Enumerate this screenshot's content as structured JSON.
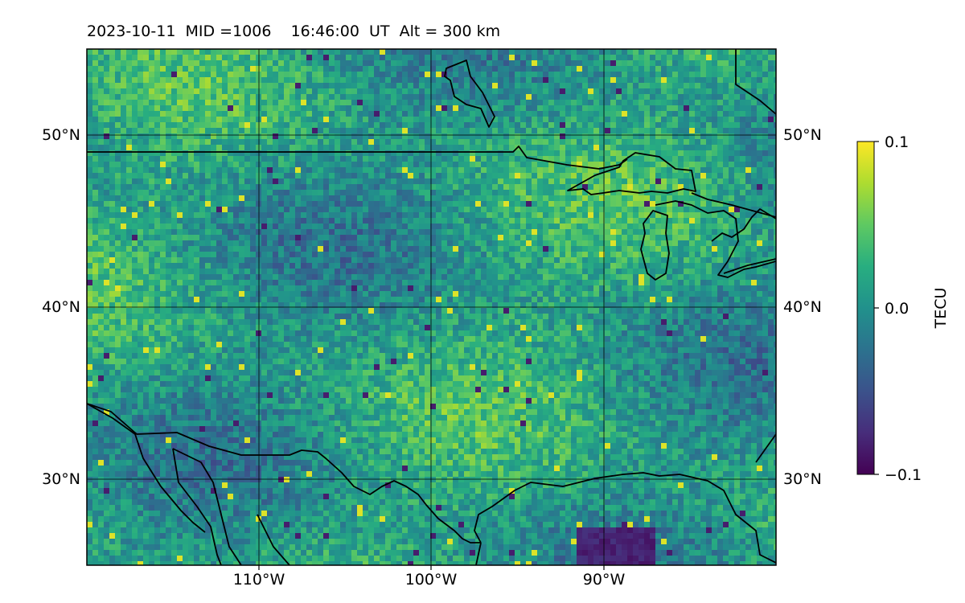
{
  "title": "2023-10-11  MID =1006    16:46:00  UT  Alt = 300 km",
  "map": {
    "lon_range": [
      -120,
      -80
    ],
    "lat_range": [
      25,
      55
    ],
    "grid": true,
    "lon_ticks": [
      {
        "value": -110,
        "label": "110°W"
      },
      {
        "value": -100,
        "label": "100°W"
      },
      {
        "value": -90,
        "label": "90°W"
      }
    ],
    "lat_ticks": [
      {
        "value": 30,
        "label": "30°N"
      },
      {
        "value": 40,
        "label": "40°N"
      },
      {
        "value": 50,
        "label": "50°N"
      }
    ],
    "colormap": "viridis",
    "coastline_color": "#000000",
    "us_canada_border_lat": 49
  },
  "colorbar": {
    "label": "TECU",
    "min": -0.1,
    "max": 0.1,
    "ticks": [
      {
        "value": 0.1,
        "label": "0.1"
      },
      {
        "value": 0.0,
        "label": "0.0"
      },
      {
        "value": -0.1,
        "label": "−0.1"
      }
    ]
  }
}
